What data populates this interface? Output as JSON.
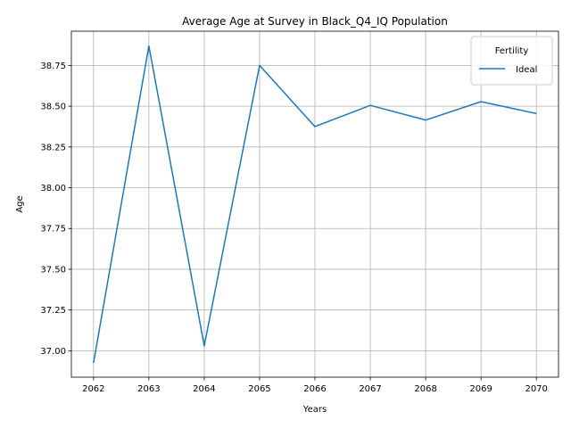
{
  "chart_data": {
    "type": "line",
    "title": "Average Age at Survey in Black_Q4_IQ Population",
    "xlabel": "Years",
    "ylabel": "Age",
    "x": [
      2062,
      2063,
      2064,
      2065,
      2066,
      2067,
      2068,
      2069,
      2070
    ],
    "x_ticks": [
      "2062",
      "2063",
      "2064",
      "2065",
      "2066",
      "2067",
      "2068",
      "2069",
      "2070"
    ],
    "y_ticks": [
      "37.00",
      "37.25",
      "37.50",
      "37.75",
      "38.00",
      "38.25",
      "38.50",
      "38.75"
    ],
    "y_tick_values": [
      37.0,
      37.25,
      37.5,
      37.75,
      38.0,
      38.25,
      38.5,
      38.75
    ],
    "xlim": [
      2061.6,
      2070.4
    ],
    "ylim": [
      36.838,
      38.96
    ],
    "grid": true,
    "legend": {
      "title": "Fertility",
      "position": "top-right"
    },
    "series": [
      {
        "name": "Ideal",
        "color": "#1f77b4",
        "values": [
          36.925,
          38.87,
          37.03,
          38.75,
          38.375,
          38.505,
          38.415,
          38.528,
          38.455
        ]
      }
    ]
  }
}
